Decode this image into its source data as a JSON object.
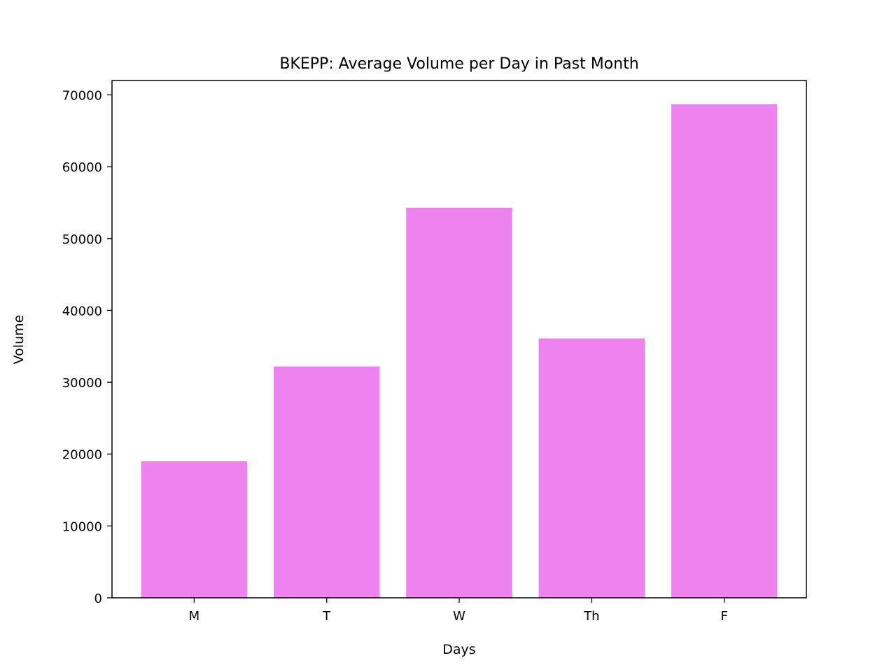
{
  "chart_data": {
    "type": "bar",
    "title": "BKEPP: Average Volume per Day in Past Month",
    "xlabel": "Days",
    "ylabel": "Volume",
    "categories": [
      "M",
      "T",
      "W",
      "Th",
      "F"
    ],
    "values": [
      19000,
      32200,
      54300,
      36100,
      68700
    ],
    "ylim": [
      0,
      72000
    ],
    "yticks": [
      0,
      10000,
      20000,
      30000,
      40000,
      50000,
      60000,
      70000
    ],
    "bar_color": "#ee82ee",
    "grid": false,
    "legend": "none"
  }
}
